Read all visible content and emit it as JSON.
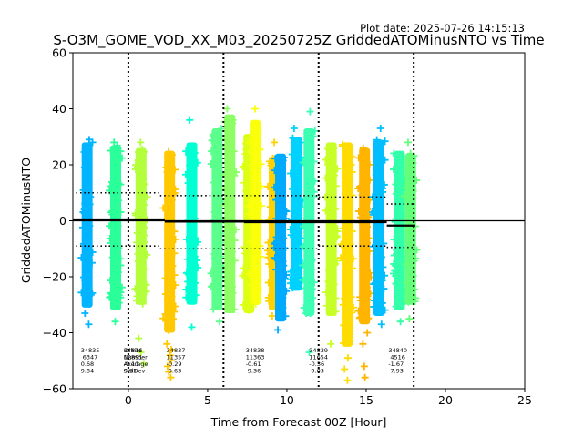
{
  "chart_data": {
    "type": "scatter",
    "title": "S-O3M_GOME_VOD_XX_M03_20250725Z GriddedATOMinusNTO vs Time",
    "plot_date": "Plot date: 2025-07-26 14:15:13",
    "xlabel": "Time from Forecast 00Z [Hour]",
    "ylabel": "GriddedATOMinusNTO",
    "xlim": [
      -3.5,
      25
    ],
    "ylim": [
      -60,
      60
    ],
    "xticks": [
      0,
      5,
      10,
      15,
      20,
      25
    ],
    "yticks": [
      -60,
      -40,
      -20,
      0,
      20,
      40,
      60
    ],
    "grid": false,
    "zero_line": 0,
    "vertical_markers": [
      0,
      6,
      12,
      18
    ],
    "columns": [
      {
        "x": -2.6,
        "ymin": -31,
        "ymax": 28,
        "outliers": [
          -37,
          29,
          -33
        ],
        "color": "#00b4ff"
      },
      {
        "x": -0.8,
        "ymin": -32,
        "ymax": 27,
        "outliers": [
          -36,
          28
        ],
        "color": "#2aff9a"
      },
      {
        "x": 0.8,
        "ymin": -30,
        "ymax": 26,
        "outliers": [
          -47,
          -51,
          -42,
          28
        ],
        "color": "#b4ff3c"
      },
      {
        "x": 2.6,
        "ymin": -40,
        "ymax": 25,
        "outliers": [
          -44,
          -46,
          -48,
          -50,
          -52,
          -54,
          -56
        ],
        "color": "#ffc800"
      },
      {
        "x": 4.0,
        "ymin": -30,
        "ymax": 28,
        "outliers": [
          -38,
          36
        ],
        "color": "#00ffd2"
      },
      {
        "x": 5.6,
        "ymin": -32,
        "ymax": 33,
        "outliers": [
          -36
        ],
        "color": "#5aff8c"
      },
      {
        "x": 6.4,
        "ymin": -33,
        "ymax": 38,
        "outliers": [
          40
        ],
        "color": "#8cff64"
      },
      {
        "x": 7.6,
        "ymin": -33,
        "ymax": 31,
        "outliers": [],
        "color": "#dcff14"
      },
      {
        "x": 8.0,
        "ymin": -30,
        "ymax": 36,
        "outliers": [
          40
        ],
        "color": "#faff0a"
      },
      {
        "x": 9.2,
        "ymin": -32,
        "ymax": 23,
        "outliers": [
          -34,
          28
        ],
        "color": "#ffd200"
      },
      {
        "x": 9.6,
        "ymin": -36,
        "ymax": 24,
        "outliers": [
          -39
        ],
        "color": "#00aaff"
      },
      {
        "x": 10.6,
        "ymin": -25,
        "ymax": 30,
        "outliers": [
          33
        ],
        "color": "#00d2ff"
      },
      {
        "x": 11.4,
        "ymin": -34,
        "ymax": 33,
        "outliers": [
          -47,
          39
        ],
        "color": "#3cffb4"
      },
      {
        "x": 12.8,
        "ymin": -34,
        "ymax": 28,
        "outliers": [
          -44
        ],
        "color": "#c8ff28"
      },
      {
        "x": 13.8,
        "ymin": -45,
        "ymax": 28,
        "outliers": [
          -49,
          -53,
          -57
        ],
        "color": "#ffdc00"
      },
      {
        "x": 14.9,
        "ymin": -37,
        "ymax": 26,
        "outliers": [
          -40,
          -44,
          -52,
          -56
        ],
        "color": "#ffb400"
      },
      {
        "x": 15.8,
        "ymin": -34,
        "ymax": 29,
        "outliers": [
          -37,
          33
        ],
        "color": "#00beff"
      },
      {
        "x": 17.1,
        "ymin": -32,
        "ymax": 25,
        "outliers": [
          -36
        ],
        "color": "#32ffaa"
      },
      {
        "x": 17.8,
        "ymin": -30,
        "ymax": 24,
        "outliers": [
          -35,
          28
        ],
        "color": "#64ff78"
      }
    ],
    "mean_segments": [
      {
        "x0": -3.5,
        "x1": 2.3,
        "y": 0.5
      },
      {
        "x0": 2.3,
        "x1": 7.3,
        "y": -0.3
      },
      {
        "x0": 7.3,
        "x1": 16.3,
        "y": -0.5
      },
      {
        "x0": 16.3,
        "x1": 18.1,
        "y": -1.7
      }
    ],
    "std_upper": [
      {
        "x0": -3.3,
        "x1": 2.0,
        "y": 10.0
      },
      {
        "x0": 2.0,
        "x1": 12.0,
        "y": 9.0
      },
      {
        "x0": 12.0,
        "x1": 16.3,
        "y": 8.5
      },
      {
        "x0": 16.3,
        "x1": 18.1,
        "y": 6.0
      }
    ],
    "std_lower": [
      {
        "x0": -3.3,
        "x1": 2.0,
        "y": -9.0
      },
      {
        "x0": 2.0,
        "x1": 12.0,
        "y": -10.0
      },
      {
        "x0": 12.0,
        "x1": 16.3,
        "y": -9.0
      },
      {
        "x0": 16.3,
        "x1": 18.1,
        "y": -9.5
      }
    ],
    "stat_blocks": [
      {
        "x": -3.0,
        "lines": [
          "34835",
          " 6347",
          "0.68",
          "9.84"
        ]
      },
      {
        "x": -0.3,
        "lines": [
          "Orbits",
          "Number",
          "Average",
          "StdDev"
        ]
      },
      {
        "x": -0.3,
        "lines": [
          "34836",
          "12891",
          "-0.11",
          "9.91"
        ]
      },
      {
        "x": 2.4,
        "lines": [
          "34837",
          "11357",
          "-0.29",
          " 9.63"
        ]
      },
      {
        "x": 7.4,
        "lines": [
          "34838",
          "11363",
          "-0.61",
          " 9.36"
        ]
      },
      {
        "x": 11.4,
        "lines": [
          "34839",
          "11654",
          "-0.36",
          " 9.03"
        ]
      },
      {
        "x": 16.4,
        "lines": [
          "34840",
          " 4516",
          "-1.67",
          " 7.93"
        ]
      }
    ]
  }
}
